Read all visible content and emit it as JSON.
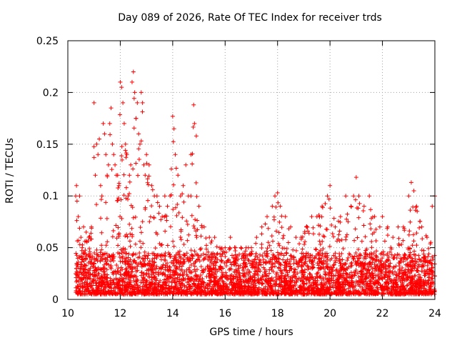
{
  "chart_data": {
    "type": "scatter",
    "title": "Day 089 of 2026, Rate Of TEC Index for receiver trds",
    "xlabel": "GPS time / hours",
    "ylabel": "ROTI / TECUs",
    "xlim": [
      10,
      24
    ],
    "ylim": [
      0,
      0.25
    ],
    "x_ticks": [
      10,
      12,
      14,
      16,
      18,
      20,
      22,
      24
    ],
    "x_tick_labels": [
      "10",
      "12",
      "14",
      "16",
      "18",
      "20",
      "22",
      "24"
    ],
    "y_ticks": [
      0,
      0.05,
      0.1,
      0.15,
      0.2,
      0.25
    ],
    "y_tick_labels": [
      "0",
      "0.05",
      "0.1",
      "0.15",
      "0.2",
      "0.25"
    ],
    "grid": true,
    "marker": "+",
    "color": "#ff0000",
    "series": [
      {
        "name": "ROTI",
        "x": [
          10.3,
          10.33,
          10.35,
          10.4,
          10.45,
          10.5,
          10.55,
          10.6,
          10.7,
          10.8,
          10.9,
          11.0,
          11.05,
          11.1,
          11.15,
          11.2,
          11.25,
          11.3,
          11.35,
          11.4,
          11.45,
          11.5,
          11.55,
          11.6,
          11.65,
          11.7,
          11.75,
          11.8,
          11.85,
          11.9,
          11.95,
          12.0,
          12.05,
          12.1,
          12.15,
          12.2,
          12.25,
          12.3,
          12.35,
          12.4,
          12.45,
          12.5,
          12.55,
          12.6,
          12.65,
          12.7,
          12.75,
          12.8,
          12.85,
          12.9,
          12.95,
          13.0,
          13.1,
          13.2,
          13.3,
          13.4,
          13.5,
          13.6,
          13.7,
          13.8,
          13.9,
          14.0,
          14.05,
          14.1,
          14.2,
          14.3,
          14.4,
          14.5,
          14.6,
          14.7,
          14.8,
          14.9,
          15.0,
          15.2,
          15.4,
          15.6,
          15.8,
          16.0,
          16.2,
          16.4,
          16.6,
          16.8,
          17.0,
          17.2,
          17.4,
          17.6,
          17.8,
          17.9,
          18.0,
          18.1,
          18.3,
          18.5,
          18.7,
          18.9,
          19.1,
          19.3,
          19.5,
          19.7,
          19.9,
          20.0,
          20.2,
          20.4,
          20.6,
          20.8,
          20.9,
          21.0,
          21.1,
          21.3,
          21.5,
          21.7,
          21.9,
          22.0,
          22.2,
          22.4,
          22.6,
          22.8,
          23.0,
          23.1,
          23.2,
          23.3,
          23.5,
          23.7,
          23.9,
          24.0
        ],
        "y": [
          0.1,
          0.11,
          0.095,
          0.08,
          0.1,
          0.06,
          0.05,
          0.07,
          0.065,
          0.06,
          0.07,
          0.19,
          0.12,
          0.15,
          0.14,
          0.155,
          0.11,
          0.1,
          0.17,
          0.16,
          0.14,
          0.12,
          0.13,
          0.17,
          0.185,
          0.15,
          0.14,
          0.13,
          0.12,
          0.12,
          0.11,
          0.21,
          0.205,
          0.19,
          0.17,
          0.15,
          0.14,
          0.1,
          0.12,
          0.13,
          0.21,
          0.22,
          0.2,
          0.175,
          0.19,
          0.16,
          0.15,
          0.2,
          0.19,
          0.13,
          0.12,
          0.14,
          0.13,
          0.11,
          0.1,
          0.1,
          0.09,
          0.08,
          0.1,
          0.09,
          0.1,
          0.177,
          0.165,
          0.14,
          0.12,
          0.1,
          0.11,
          0.13,
          0.1,
          0.14,
          0.188,
          0.158,
          0.09,
          0.07,
          0.06,
          0.06,
          0.05,
          0.05,
          0.06,
          0.05,
          0.05,
          0.05,
          0.05,
          0.06,
          0.07,
          0.08,
          0.09,
          0.1,
          0.103,
          0.09,
          0.08,
          0.07,
          0.06,
          0.06,
          0.07,
          0.08,
          0.08,
          0.09,
          0.1,
          0.11,
          0.07,
          0.08,
          0.1,
          0.09,
          0.1,
          0.118,
          0.1,
          0.09,
          0.1,
          0.08,
          0.07,
          0.08,
          0.07,
          0.06,
          0.07,
          0.07,
          0.1,
          0.113,
          0.105,
          0.09,
          0.07,
          0.06,
          0.09,
          0.1
        ],
        "baseline_band": [
          0.005,
          0.045
        ]
      }
    ]
  }
}
